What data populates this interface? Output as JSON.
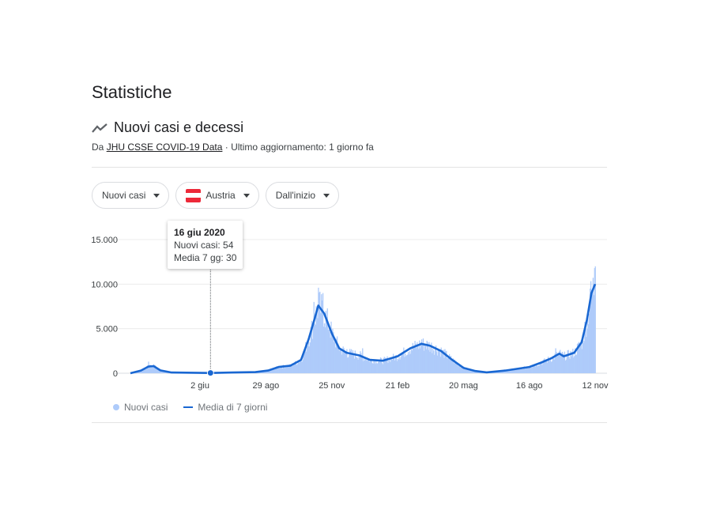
{
  "page": {
    "title": "Statistiche"
  },
  "section": {
    "title": "Nuovi casi e decessi",
    "icon": "trending-line-icon",
    "source_prefix": "Da",
    "source_link": "JHU CSSE COVID-19 Data",
    "source_suffix": "· Ultimo aggiornamento: 1 giorno fa"
  },
  "filters": {
    "metric": "Nuovi casi",
    "country": "Austria",
    "range": "Dall'inizio"
  },
  "tooltip": {
    "date": "16 giu 2020",
    "new_cases": "Nuovi casi: 54",
    "avg7": "Media 7 gg: 30"
  },
  "legend": {
    "daily": "Nuovi casi",
    "avg": "Media di 7 giorni"
  },
  "colors": {
    "avg_line": "#1967d2",
    "bars": "#aecbfa",
    "flag_red": "#ed2939",
    "flag_white": "#ffffff"
  },
  "chart_data": {
    "type": "area",
    "x_axis": "date",
    "ylim": [
      0,
      15000
    ],
    "y_ticks": [
      0,
      5000,
      10000,
      15000
    ],
    "y_tick_labels": [
      "0",
      "5.000",
      "10.000",
      "15.000"
    ],
    "x_ticks": [
      "2 giu",
      "29 ago",
      "25 nov",
      "21 feb",
      "20 mag",
      "16 ago",
      "12 nov"
    ],
    "grid": true,
    "series": [
      {
        "name": "Media di 7 giorni",
        "kind": "line",
        "points": [
          [
            "1 mar 2020",
            0
          ],
          [
            "15 mar 2020",
            300
          ],
          [
            "25 mar 2020",
            750
          ],
          [
            "1 apr 2020",
            800
          ],
          [
            "10 apr 2020",
            320
          ],
          [
            "25 apr 2020",
            80
          ],
          [
            "16 giu 2020",
            30
          ],
          [
            "15 lug 2020",
            80
          ],
          [
            "15 ago 2020",
            120
          ],
          [
            "1 set 2020",
            300
          ],
          [
            "15 set 2020",
            700
          ],
          [
            "1 ott 2020",
            850
          ],
          [
            "15 ott 2020",
            1500
          ],
          [
            "25 ott 2020",
            3800
          ],
          [
            "1 nov 2020",
            5800
          ],
          [
            "7 nov 2020",
            7600
          ],
          [
            "15 nov 2020",
            6700
          ],
          [
            "25 nov 2020",
            4500
          ],
          [
            "5 dic 2020",
            2800
          ],
          [
            "15 dic 2020",
            2300
          ],
          [
            "1 gen 2021",
            2000
          ],
          [
            "15 gen 2021",
            1500
          ],
          [
            "1 feb 2021",
            1400
          ],
          [
            "21 feb 2021",
            1900
          ],
          [
            "10 mar 2021",
            2800
          ],
          [
            "25 mar 2021",
            3300
          ],
          [
            "5 apr 2021",
            3100
          ],
          [
            "20 apr 2021",
            2500
          ],
          [
            "5 mag 2021",
            1500
          ],
          [
            "20 mag 2021",
            600
          ],
          [
            "5 giu 2021",
            250
          ],
          [
            "20 giu 2021",
            100
          ],
          [
            "15 lug 2021",
            300
          ],
          [
            "16 ago 2021",
            700
          ],
          [
            "1 set 2021",
            1200
          ],
          [
            "15 set 2021",
            1700
          ],
          [
            "25 set 2021",
            2200
          ],
          [
            "1 ott 2021",
            1900
          ],
          [
            "15 ott 2021",
            2300
          ],
          [
            "25 ott 2021",
            3500
          ],
          [
            "1 nov 2021",
            6000
          ],
          [
            "7 nov 2021",
            9000
          ],
          [
            "12 nov 2021",
            10000
          ]
        ]
      },
      {
        "name": "Nuovi casi",
        "kind": "bars",
        "points": [
          [
            "25 mar 2020",
            1300
          ],
          [
            "1 apr 2020",
            1000
          ],
          [
            "16 giu 2020",
            54
          ],
          [
            "1 nov 2020",
            8000
          ],
          [
            "7 nov 2020",
            9600
          ],
          [
            "13 nov 2020",
            9000
          ],
          [
            "15 dic 2020",
            2700
          ],
          [
            "5 gen 2021",
            2800
          ],
          [
            "25 mar 2021",
            3800
          ],
          [
            "20 set 2021",
            2800
          ],
          [
            "5 nov 2021",
            9500
          ],
          [
            "11 nov 2021",
            11800
          ],
          [
            "12 nov 2021",
            12000
          ]
        ]
      }
    ]
  }
}
